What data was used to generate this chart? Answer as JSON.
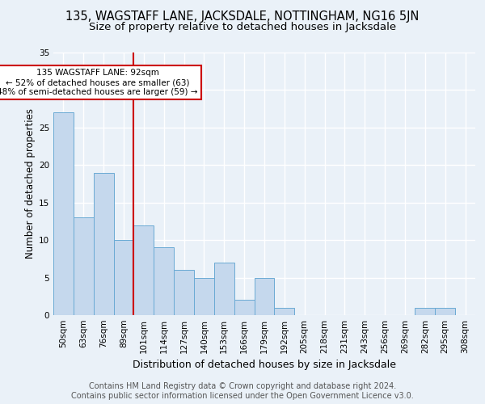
{
  "title": "135, WAGSTAFF LANE, JACKSDALE, NOTTINGHAM, NG16 5JN",
  "subtitle": "Size of property relative to detached houses in Jacksdale",
  "xlabel": "Distribution of detached houses by size in Jacksdale",
  "ylabel": "Number of detached properties",
  "bins": [
    "50sqm",
    "63sqm",
    "76sqm",
    "89sqm",
    "101sqm",
    "114sqm",
    "127sqm",
    "140sqm",
    "153sqm",
    "166sqm",
    "179sqm",
    "192sqm",
    "205sqm",
    "218sqm",
    "231sqm",
    "243sqm",
    "256sqm",
    "269sqm",
    "282sqm",
    "295sqm",
    "308sqm"
  ],
  "values": [
    27,
    13,
    19,
    10,
    12,
    9,
    6,
    5,
    7,
    2,
    5,
    1,
    0,
    0,
    0,
    0,
    0,
    0,
    1,
    1,
    0
  ],
  "bar_color": "#c5d8ed",
  "bar_edge_color": "#6aaad4",
  "marker_color": "#cc0000",
  "annotation_text": "135 WAGSTAFF LANE: 92sqm\n← 52% of detached houses are smaller (63)\n48% of semi-detached houses are larger (59) →",
  "annotation_box_color": "#ffffff",
  "annotation_box_edge": "#cc0000",
  "ylim": [
    0,
    35
  ],
  "yticks": [
    0,
    5,
    10,
    15,
    20,
    25,
    30,
    35
  ],
  "footer_line1": "Contains HM Land Registry data © Crown copyright and database right 2024.",
  "footer_line2": "Contains public sector information licensed under the Open Government Licence v3.0.",
  "bg_color": "#eaf1f8",
  "plot_bg": "#eaf1f8",
  "grid_color": "#ffffff",
  "title_fontsize": 10.5,
  "subtitle_fontsize": 9.5,
  "axis_label_fontsize": 8.5,
  "tick_fontsize": 7.5,
  "footer_fontsize": 7.0,
  "annotation_fontsize": 7.5
}
